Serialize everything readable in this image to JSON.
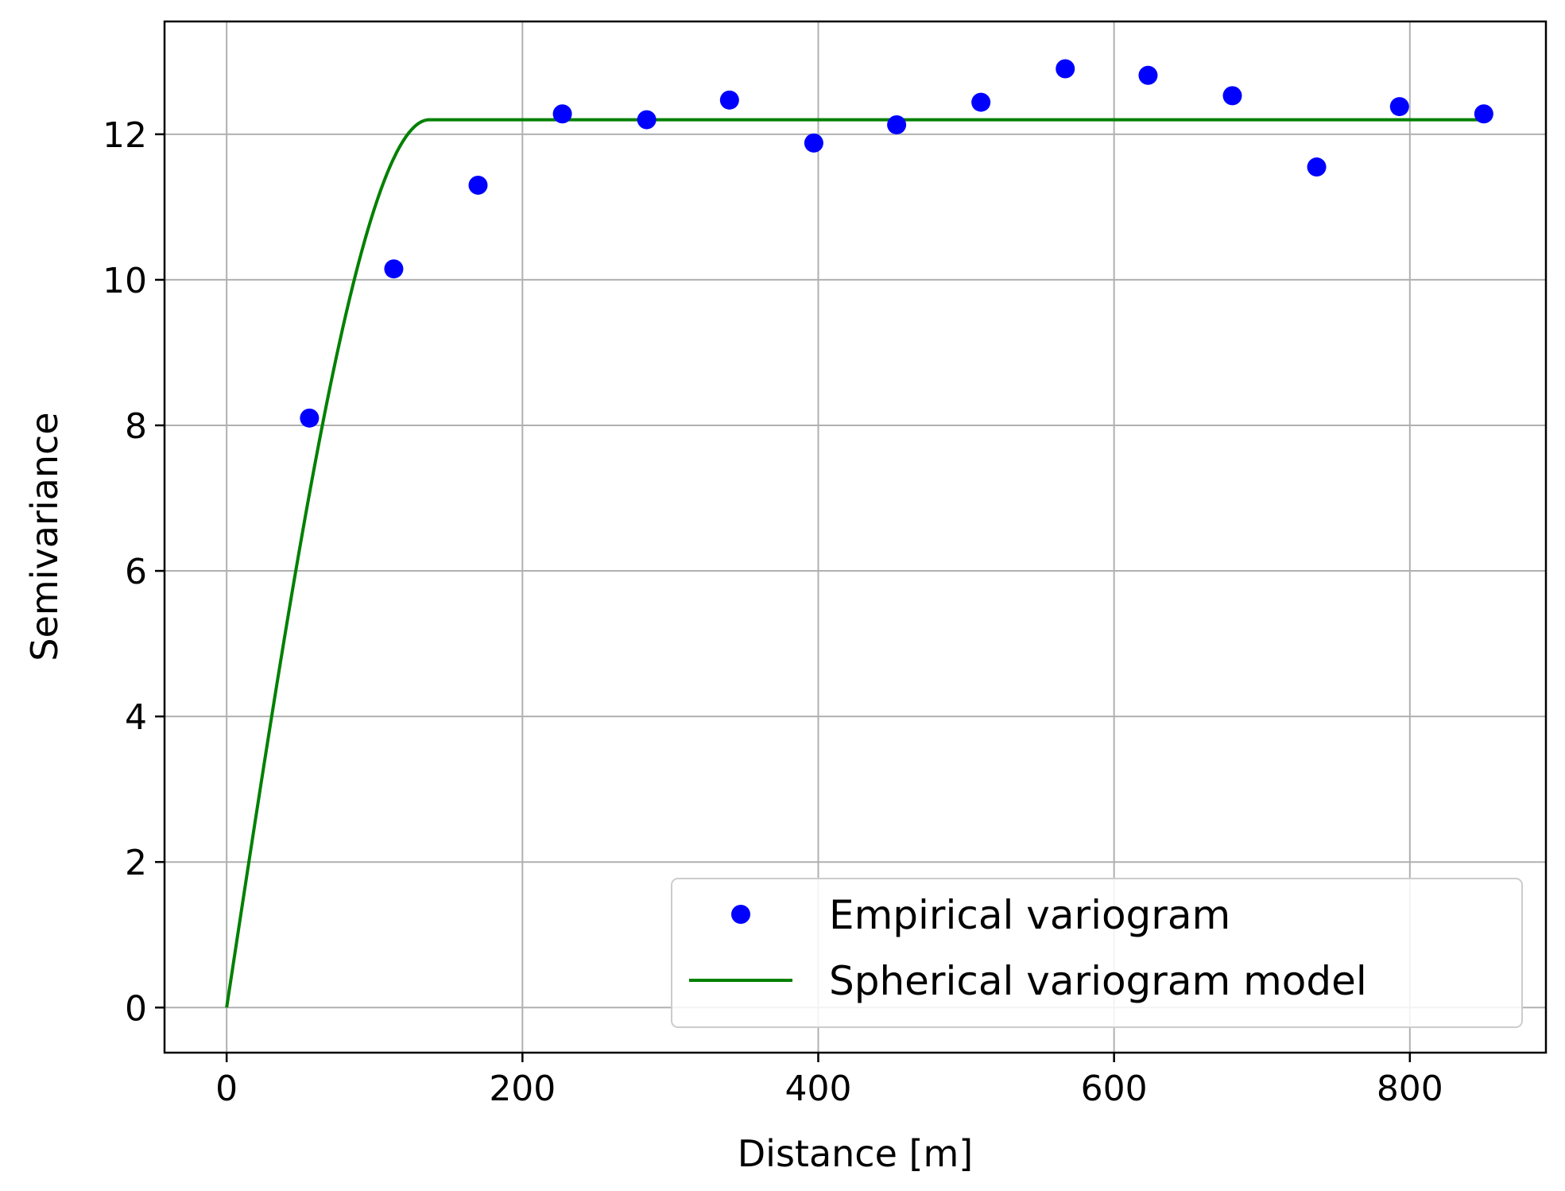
{
  "chart_data": {
    "type": "scatter",
    "title": "",
    "xlabel": "Distance [m]",
    "ylabel": "Semivariance",
    "xlim": [
      -42,
      892
    ],
    "ylim": [
      -0.62,
      13.55
    ],
    "grid": true,
    "x_ticks": [
      0,
      200,
      400,
      600,
      800
    ],
    "y_ticks": [
      0,
      2,
      4,
      6,
      8,
      10,
      12
    ],
    "legend": {
      "position": "lower-right",
      "entries": [
        "Empirical variogram",
        "Spherical variogram model"
      ]
    },
    "series": [
      {
        "name": "Empirical variogram",
        "kind": "scatter",
        "color": "#0000ff",
        "x": [
          56,
          113,
          170,
          227,
          284,
          340,
          397,
          453,
          510,
          567,
          623,
          680,
          737,
          793,
          850
        ],
        "y": [
          8.1,
          10.15,
          11.3,
          12.28,
          12.2,
          12.47,
          11.88,
          12.13,
          12.44,
          12.9,
          12.81,
          12.53,
          11.55,
          12.38,
          12.28
        ]
      },
      {
        "name": "Spherical variogram model",
        "kind": "line",
        "color": "#008000",
        "model": "spherical",
        "nugget": 0,
        "sill": 12.2,
        "range": 137,
        "x_max": 850
      }
    ]
  }
}
